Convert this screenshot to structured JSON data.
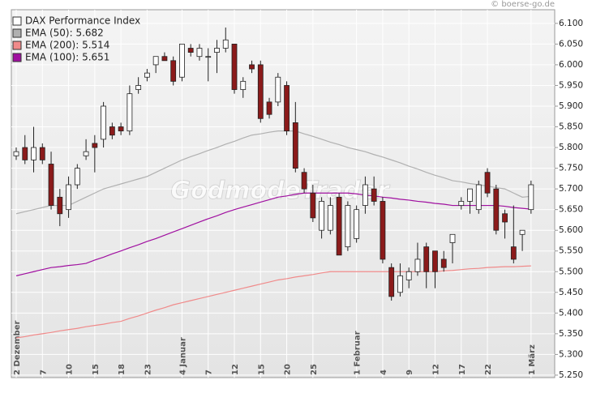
{
  "chart_data": {
    "type": "candlestick",
    "copyright": "© boerse-go.de",
    "watermark": "GodmodeTrader",
    "categories": [
      "2 Dezember",
      null,
      null,
      "7",
      null,
      null,
      "10",
      null,
      null,
      "15",
      null,
      null,
      "18",
      null,
      null,
      "23",
      null,
      null,
      null,
      "4 Januar",
      null,
      null,
      "7",
      null,
      null,
      "12",
      null,
      null,
      "15",
      null,
      null,
      "20",
      null,
      null,
      "25",
      null,
      null,
      null,
      null,
      "1 Februar",
      null,
      null,
      "4",
      null,
      null,
      "9",
      null,
      null,
      "12",
      null,
      null,
      "17",
      null,
      null,
      "22",
      null,
      null,
      null,
      null,
      "1 März"
    ],
    "ylim": [
      5.244,
      6.133
    ],
    "yticks": [
      {
        "value": 5.25,
        "label": "5.250"
      },
      {
        "value": 5.3,
        "label": "5.300"
      },
      {
        "value": 5.35,
        "label": "5.350"
      },
      {
        "value": 5.4,
        "label": "5.400"
      },
      {
        "value": 5.45,
        "label": "5.450"
      },
      {
        "value": 5.5,
        "label": "5.500"
      },
      {
        "value": 5.55,
        "label": "5.550"
      },
      {
        "value": 5.6,
        "label": "5.600"
      },
      {
        "value": 5.65,
        "label": "5.650"
      },
      {
        "value": 5.7,
        "label": "5.700"
      },
      {
        "value": 5.75,
        "label": "5.750"
      },
      {
        "value": 5.8,
        "label": "5.800"
      },
      {
        "value": 5.85,
        "label": "5.850"
      },
      {
        "value": 5.9,
        "label": "5.900"
      },
      {
        "value": 5.95,
        "label": "5.950"
      },
      {
        "value": 6.0,
        "label": "6.000"
      },
      {
        "value": 6.05,
        "label": "6.050"
      },
      {
        "value": 6.1,
        "label": "6.100"
      }
    ],
    "grid": true,
    "series": [
      {
        "name": "DAX Performance Index",
        "color": "#ffffff",
        "down_color": "#8b1a1a",
        "open": [
          5.78,
          5.8,
          5.77,
          5.8,
          5.76,
          5.68,
          5.65,
          5.71,
          5.78,
          5.81,
          5.82,
          5.85,
          5.85,
          5.84,
          5.94,
          5.97,
          6.0,
          6.02,
          6.01,
          5.97,
          6.04,
          6.02,
          6.02,
          6.03,
          6.04,
          6.05,
          5.94,
          6.0,
          6.0,
          5.91,
          5.91,
          5.95,
          5.86,
          5.74,
          5.69,
          5.6,
          5.6,
          5.68,
          5.56,
          5.58,
          5.66,
          5.7,
          5.67,
          5.51,
          5.45,
          5.48,
          5.5,
          5.56,
          5.55,
          5.53,
          5.57,
          5.66,
          5.67,
          5.65,
          5.74,
          5.7,
          5.64,
          5.56,
          5.59,
          5.65
        ],
        "high": [
          5.8,
          5.83,
          5.85,
          5.81,
          5.79,
          5.7,
          5.73,
          5.76,
          5.82,
          5.83,
          5.91,
          5.86,
          5.86,
          5.95,
          5.97,
          5.99,
          6.02,
          6.03,
          6.02,
          6.05,
          6.05,
          6.05,
          6.04,
          6.06,
          6.09,
          6.05,
          5.97,
          6.01,
          6.01,
          5.92,
          5.98,
          5.96,
          5.91,
          5.75,
          5.71,
          5.68,
          5.68,
          5.69,
          5.67,
          5.66,
          5.73,
          5.73,
          5.68,
          5.52,
          5.52,
          5.51,
          5.57,
          5.57,
          5.55,
          5.55,
          5.59,
          5.68,
          5.7,
          5.72,
          5.75,
          5.71,
          5.65,
          5.66,
          5.6,
          5.72
        ],
        "low": [
          5.77,
          5.76,
          5.74,
          5.76,
          5.65,
          5.61,
          5.63,
          5.7,
          5.77,
          5.74,
          5.8,
          5.82,
          5.83,
          5.83,
          5.93,
          5.96,
          5.98,
          6.01,
          5.95,
          5.96,
          6.02,
          6.01,
          5.96,
          5.98,
          6.03,
          5.93,
          5.92,
          5.98,
          5.86,
          5.87,
          5.9,
          5.83,
          5.74,
          5.69,
          5.62,
          5.58,
          5.59,
          5.54,
          5.55,
          5.57,
          5.64,
          5.66,
          5.52,
          5.43,
          5.44,
          5.46,
          5.49,
          5.46,
          5.46,
          5.5,
          5.52,
          5.65,
          5.64,
          5.64,
          5.68,
          5.59,
          5.58,
          5.52,
          5.55,
          5.64
        ],
        "close": [
          5.79,
          5.77,
          5.8,
          5.77,
          5.66,
          5.64,
          5.71,
          5.75,
          5.79,
          5.8,
          5.9,
          5.83,
          5.84,
          5.93,
          5.95,
          5.98,
          6.02,
          6.01,
          5.96,
          6.05,
          6.03,
          6.04,
          6.02,
          6.04,
          6.06,
          5.94,
          5.96,
          5.99,
          5.87,
          5.88,
          5.97,
          5.84,
          5.75,
          5.7,
          5.63,
          5.67,
          5.66,
          5.54,
          5.66,
          5.65,
          5.71,
          5.67,
          5.53,
          5.44,
          5.49,
          5.5,
          5.53,
          5.5,
          5.5,
          5.51,
          5.59,
          5.67,
          5.7,
          5.71,
          5.69,
          5.6,
          5.62,
          5.53,
          5.6,
          5.71
        ]
      },
      {
        "name": "EMA (50): 5.682",
        "color": "#b0b0b0",
        "values": [
          5.64,
          5.645,
          5.65,
          5.655,
          5.66,
          5.66,
          5.66,
          5.67,
          5.68,
          5.69,
          5.7,
          5.706,
          5.712,
          5.718,
          5.724,
          5.73,
          5.74,
          5.75,
          5.76,
          5.77,
          5.778,
          5.785,
          5.793,
          5.8,
          5.808,
          5.815,
          5.823,
          5.83,
          5.833,
          5.837,
          5.84,
          5.84,
          5.84,
          5.833,
          5.827,
          5.82,
          5.813,
          5.807,
          5.8,
          5.795,
          5.79,
          5.783,
          5.777,
          5.77,
          5.763,
          5.755,
          5.748,
          5.74,
          5.733,
          5.727,
          5.72,
          5.717,
          5.713,
          5.71,
          5.707,
          5.703,
          5.7,
          5.69,
          5.68,
          5.682
        ]
      },
      {
        "name": "EMA (200): 5.514",
        "color": "#f08a8a",
        "values": [
          5.34,
          5.343,
          5.347,
          5.35,
          5.353,
          5.357,
          5.36,
          5.363,
          5.367,
          5.37,
          5.373,
          5.377,
          5.38,
          5.387,
          5.393,
          5.4,
          5.407,
          5.413,
          5.42,
          5.425,
          5.43,
          5.435,
          5.44,
          5.445,
          5.45,
          5.455,
          5.46,
          5.465,
          5.47,
          5.475,
          5.48,
          5.483,
          5.487,
          5.49,
          5.493,
          5.497,
          5.5,
          5.5,
          5.5,
          5.5,
          5.5,
          5.5,
          5.5,
          5.5,
          5.5,
          5.5,
          5.5,
          5.5,
          5.5,
          5.502,
          5.503,
          5.505,
          5.507,
          5.508,
          5.51,
          5.511,
          5.512,
          5.512,
          5.513,
          5.514
        ]
      },
      {
        "name": "EMA (100): 5.651",
        "color": "#a010a0",
        "values": [
          5.49,
          5.495,
          5.5,
          5.505,
          5.51,
          5.512,
          5.515,
          5.517,
          5.52,
          5.528,
          5.535,
          5.543,
          5.55,
          5.558,
          5.565,
          5.573,
          5.58,
          5.588,
          5.596,
          5.604,
          5.612,
          5.62,
          5.628,
          5.635,
          5.643,
          5.65,
          5.656,
          5.662,
          5.668,
          5.674,
          5.68,
          5.683,
          5.687,
          5.69,
          5.69,
          5.69,
          5.69,
          5.69,
          5.69,
          5.688,
          5.685,
          5.683,
          5.68,
          5.678,
          5.675,
          5.673,
          5.67,
          5.668,
          5.665,
          5.663,
          5.66,
          5.66,
          5.66,
          5.66,
          5.66,
          5.66,
          5.658,
          5.655,
          5.653,
          5.651
        ]
      }
    ]
  }
}
